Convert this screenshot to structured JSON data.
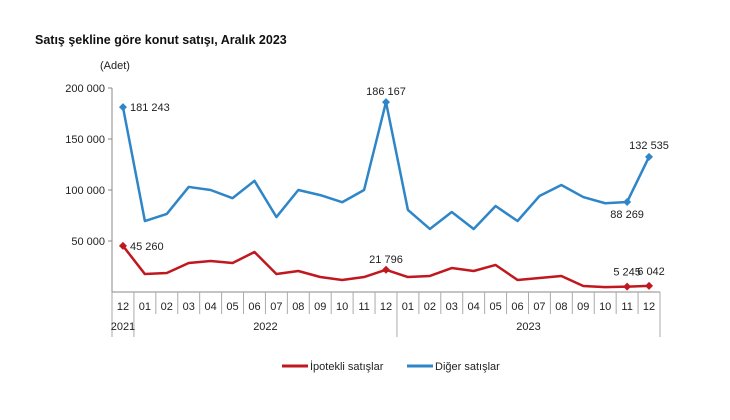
{
  "chart_data": {
    "type": "line",
    "title": "Satış şekline göre konut satışı, Aralık 2023",
    "ylabel": "(Adet)",
    "ylim": [
      0,
      200000
    ],
    "yticks": [
      50000,
      100000,
      150000,
      200000
    ],
    "ytick_labels": [
      "50 000",
      "100 000",
      "150 000",
      "200 000"
    ],
    "grid": false,
    "legend": "bottom",
    "categories": [
      "12",
      "01",
      "02",
      "03",
      "04",
      "05",
      "06",
      "07",
      "08",
      "09",
      "10",
      "11",
      "12",
      "01",
      "02",
      "03",
      "04",
      "05",
      "06",
      "07",
      "08",
      "09",
      "10",
      "11",
      "12"
    ],
    "years": [
      {
        "label": "2021",
        "start": 0,
        "end": 0
      },
      {
        "label": "2022",
        "start": 1,
        "end": 12
      },
      {
        "label": "2023",
        "start": 13,
        "end": 24
      }
    ],
    "series": [
      {
        "name": "İpotekli satışlar",
        "color": "#C0181E",
        "values": [
          45260,
          17600,
          18600,
          28400,
          30400,
          28400,
          39200,
          17600,
          20600,
          14700,
          11800,
          14700,
          21796,
          14700,
          15700,
          23500,
          20600,
          26500,
          11800,
          13700,
          15700,
          5900,
          4800,
          5245,
          6042
        ],
        "labels": [
          {
            "index": 0,
            "text": "45 260"
          },
          {
            "index": 12,
            "text": "21 796"
          },
          {
            "index": 23,
            "text": "5 245"
          },
          {
            "index": 24,
            "text": "6 042"
          }
        ]
      },
      {
        "name": "Diğer satışlar",
        "color": "#2E86C8",
        "values": [
          181243,
          69600,
          76500,
          103000,
          100000,
          92000,
          109000,
          73500,
          100000,
          95000,
          88000,
          100000,
          186167,
          80400,
          61800,
          78400,
          61800,
          84300,
          69600,
          94100,
          104900,
          93100,
          87000,
          88269,
          132535
        ],
        "labels": [
          {
            "index": 0,
            "text": "181 243"
          },
          {
            "index": 12,
            "text": "186 167"
          },
          {
            "index": 23,
            "text": "88 269"
          },
          {
            "index": 24,
            "text": "132 535"
          }
        ]
      }
    ]
  }
}
